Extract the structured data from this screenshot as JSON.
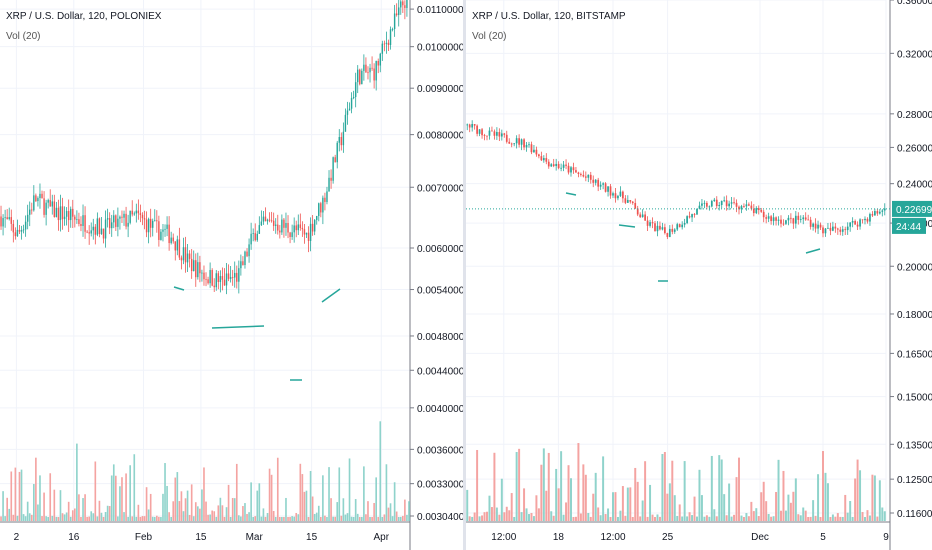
{
  "left_chart": {
    "title": "XRP / U.S. Dollar, 120, POLONIEX",
    "volume_label": "Vol (20)",
    "price_ticks": [
      "0.01100000",
      "0.01000000",
      "0.00900000",
      "0.00800000",
      "0.00700000",
      "0.00600000",
      "0.00540000",
      "0.00480000",
      "0.00440000",
      "0.00400000",
      "0.00360000",
      "0.00330000",
      "0.00304000"
    ],
    "time_ticks": [
      "2",
      "16",
      "Feb",
      "15",
      "Mar",
      "15",
      "Apr"
    ]
  },
  "right_chart": {
    "title": "XRP / U.S. Dollar, 120, BITSTAMP",
    "volume_label": "Vol (20)",
    "price_ticks": [
      "0.36000",
      "0.32000",
      "0.28000",
      "0.26000",
      "0.24000",
      "0.22000",
      "0.20000",
      "0.18000",
      "0.16500",
      "0.15000",
      "0.13500",
      "0.12500",
      "0.11600"
    ],
    "last_price": "0.22699",
    "countdown": "24:44",
    "time_ticks": [
      "12:00",
      "18",
      "12:00",
      "25",
      "Dec",
      "5",
      "9"
    ]
  },
  "colors": {
    "up": "#26a69a",
    "down": "#ef5350",
    "up_vol": "#8fd3cb",
    "down_vol": "#f4a3a1",
    "axis_text": "#131722",
    "grid": "#f0f3fa"
  },
  "chart_data": [
    {
      "type": "candlestick",
      "title": "XRP / U.S. Dollar, 120, POLONIEX",
      "yscale": "log",
      "ylim": [
        0.00304,
        0.0112
      ],
      "x_range": [
        "Jan 1",
        "Apr 5"
      ],
      "series": [
        {
          "name": "close",
          "x": [
            "Jan 1",
            "Jan 5",
            "Jan 10",
            "Jan 15",
            "Jan 20",
            "Jan 25",
            "Jan 30",
            "Feb 1",
            "Feb 5",
            "Feb 10",
            "Feb 14",
            "Feb 18",
            "Feb 22",
            "Feb 26",
            "Mar 1",
            "Mar 5",
            "Mar 9",
            "Mar 12",
            "Mar 15",
            "Mar 18",
            "Mar 21",
            "Mar 24",
            "Mar 27",
            "Mar 30",
            "Apr 2"
          ],
          "values": [
            0.0065,
            0.0062,
            0.0068,
            0.0066,
            0.0065,
            0.0064,
            0.0063,
            0.0064,
            0.0065,
            0.0063,
            0.0062,
            0.0058,
            0.0056,
            0.0055,
            0.0056,
            0.0063,
            0.0064,
            0.0063,
            0.0062,
            0.0068,
            0.0079,
            0.0093,
            0.0094,
            0.0105,
            0.0115
          ]
        }
      ],
      "annotations": [
        "trend lines under lows"
      ]
    },
    {
      "type": "candlestick",
      "title": "XRP / U.S. Dollar, 120, BITSTAMP",
      "yscale": "log",
      "ylim": [
        0.116,
        0.36
      ],
      "x_range": [
        "Nov 16",
        "Dec 9"
      ],
      "series": [
        {
          "name": "close",
          "x": [
            "Nov 16",
            "Nov 17",
            "Nov 18",
            "Nov 19",
            "Nov 20",
            "Nov 21",
            "Nov 22",
            "Nov 23",
            "Nov 24",
            "Nov 25",
            "Nov 26",
            "Nov 27",
            "Nov 28",
            "Nov 29",
            "Nov 30",
            "Dec 1",
            "Dec 2",
            "Dec 3",
            "Dec 4",
            "Dec 5",
            "Dec 6",
            "Dec 7"
          ],
          "values": [
            0.273,
            0.268,
            0.265,
            0.262,
            0.252,
            0.248,
            0.243,
            0.237,
            0.232,
            0.22,
            0.215,
            0.222,
            0.229,
            0.23,
            0.228,
            0.223,
            0.221,
            0.222,
            0.216,
            0.218,
            0.222,
            0.227
          ]
        }
      ],
      "last_value": 0.22699
    }
  ]
}
